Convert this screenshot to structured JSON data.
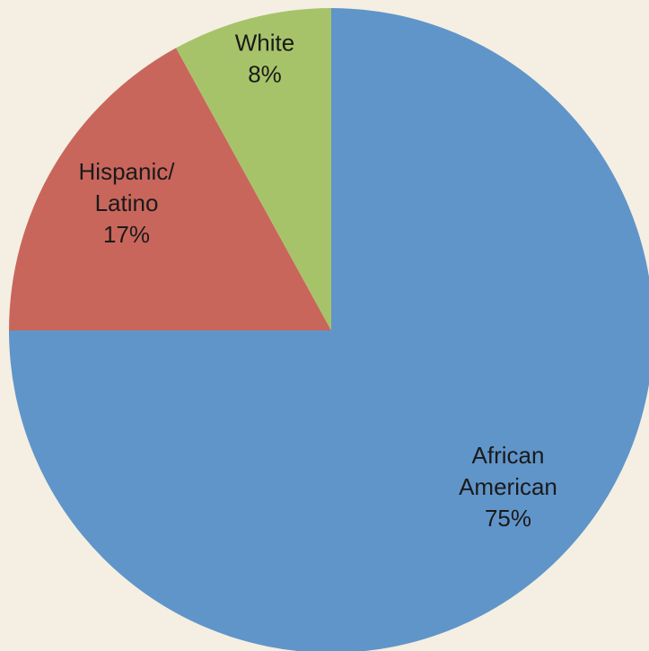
{
  "chart_data": {
    "type": "pie",
    "title": "",
    "start_angle_deg": 0,
    "direction": "clockwise",
    "slices": [
      {
        "label_lines": [
          "African",
          "American",
          "75%"
        ],
        "value": 75,
        "color": "#6095c9"
      },
      {
        "label_lines": [
          "Hispanic/",
          "Latino",
          "17%"
        ],
        "value": 17,
        "color": "#c9665c"
      },
      {
        "label_lines": [
          "White",
          "8%"
        ],
        "value": 8,
        "color": "#a7c36a"
      }
    ],
    "legend": "none"
  },
  "colors": {
    "background": "#f4efe2",
    "label_text": "#1a1a1a"
  }
}
